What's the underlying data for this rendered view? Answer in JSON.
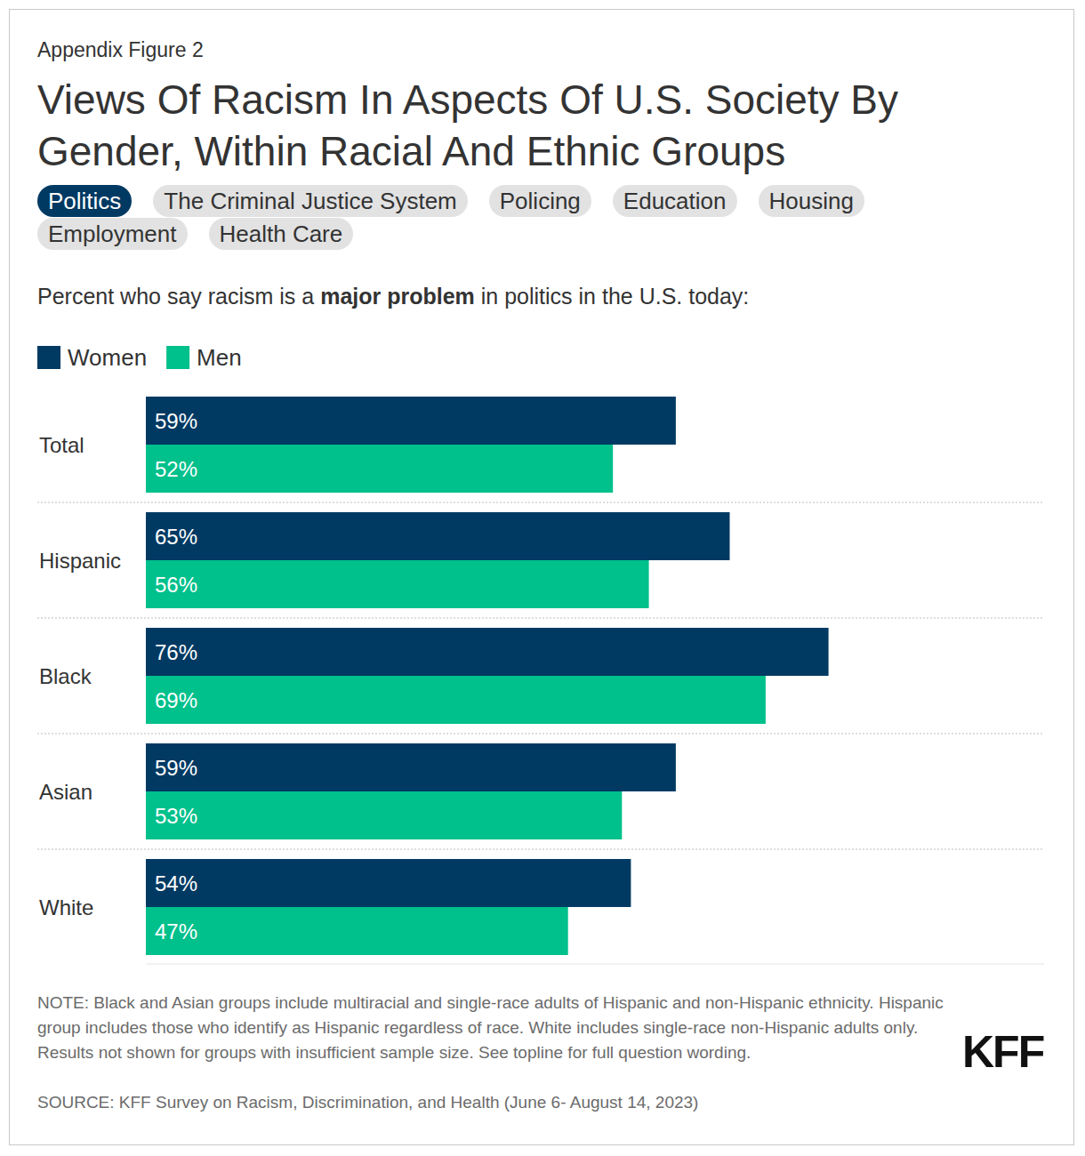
{
  "chart_data": {
    "type": "bar",
    "orientation": "horizontal",
    "figure_label": "Appendix Figure 2",
    "title": "Views Of Racism In Aspects Of U.S. Society By Gender, Within Racial And Ethnic Groups",
    "tabs": [
      "Politics",
      "The Criminal Justice System",
      "Policing",
      "Education",
      "Housing",
      "Employment",
      "Health Care"
    ],
    "subtitle": [
      "Percent who say racism is a ",
      "major problem",
      " in politics in the U.S. today:"
    ],
    "categories": [
      "Total",
      "Hispanic",
      "Black",
      "Asian",
      "White"
    ],
    "series": [
      {
        "name": "Women",
        "color": "#003a63",
        "values": [
          59,
          65,
          76,
          59,
          54
        ],
        "value_labels": [
          "59%",
          "65%",
          "76%",
          "59%",
          "54%"
        ]
      },
      {
        "name": "Men",
        "color": "#00c08b",
        "values": [
          52,
          56,
          69,
          53,
          47
        ],
        "value_labels": [
          "52%",
          "56%",
          "69%",
          "53%",
          "47%"
        ]
      }
    ],
    "ylim": [
      0,
      100
    ],
    "tick_labels": false,
    "data_labels": true,
    "legend": "top-left",
    "note": "NOTE: Black and Asian groups include multiracial and single-race adults of Hispanic and non-Hispanic ethnicity. Hispanic group includes those who identify as Hispanic regardless of race. White includes single-race non-Hispanic adults only. Results not shown for groups with insufficient sample size. See topline for full question wording.",
    "source": "SOURCE: KFF Survey on Racism, Discrimination, and Health (June 6- August 14, 2023)",
    "logo": "KFF"
  }
}
